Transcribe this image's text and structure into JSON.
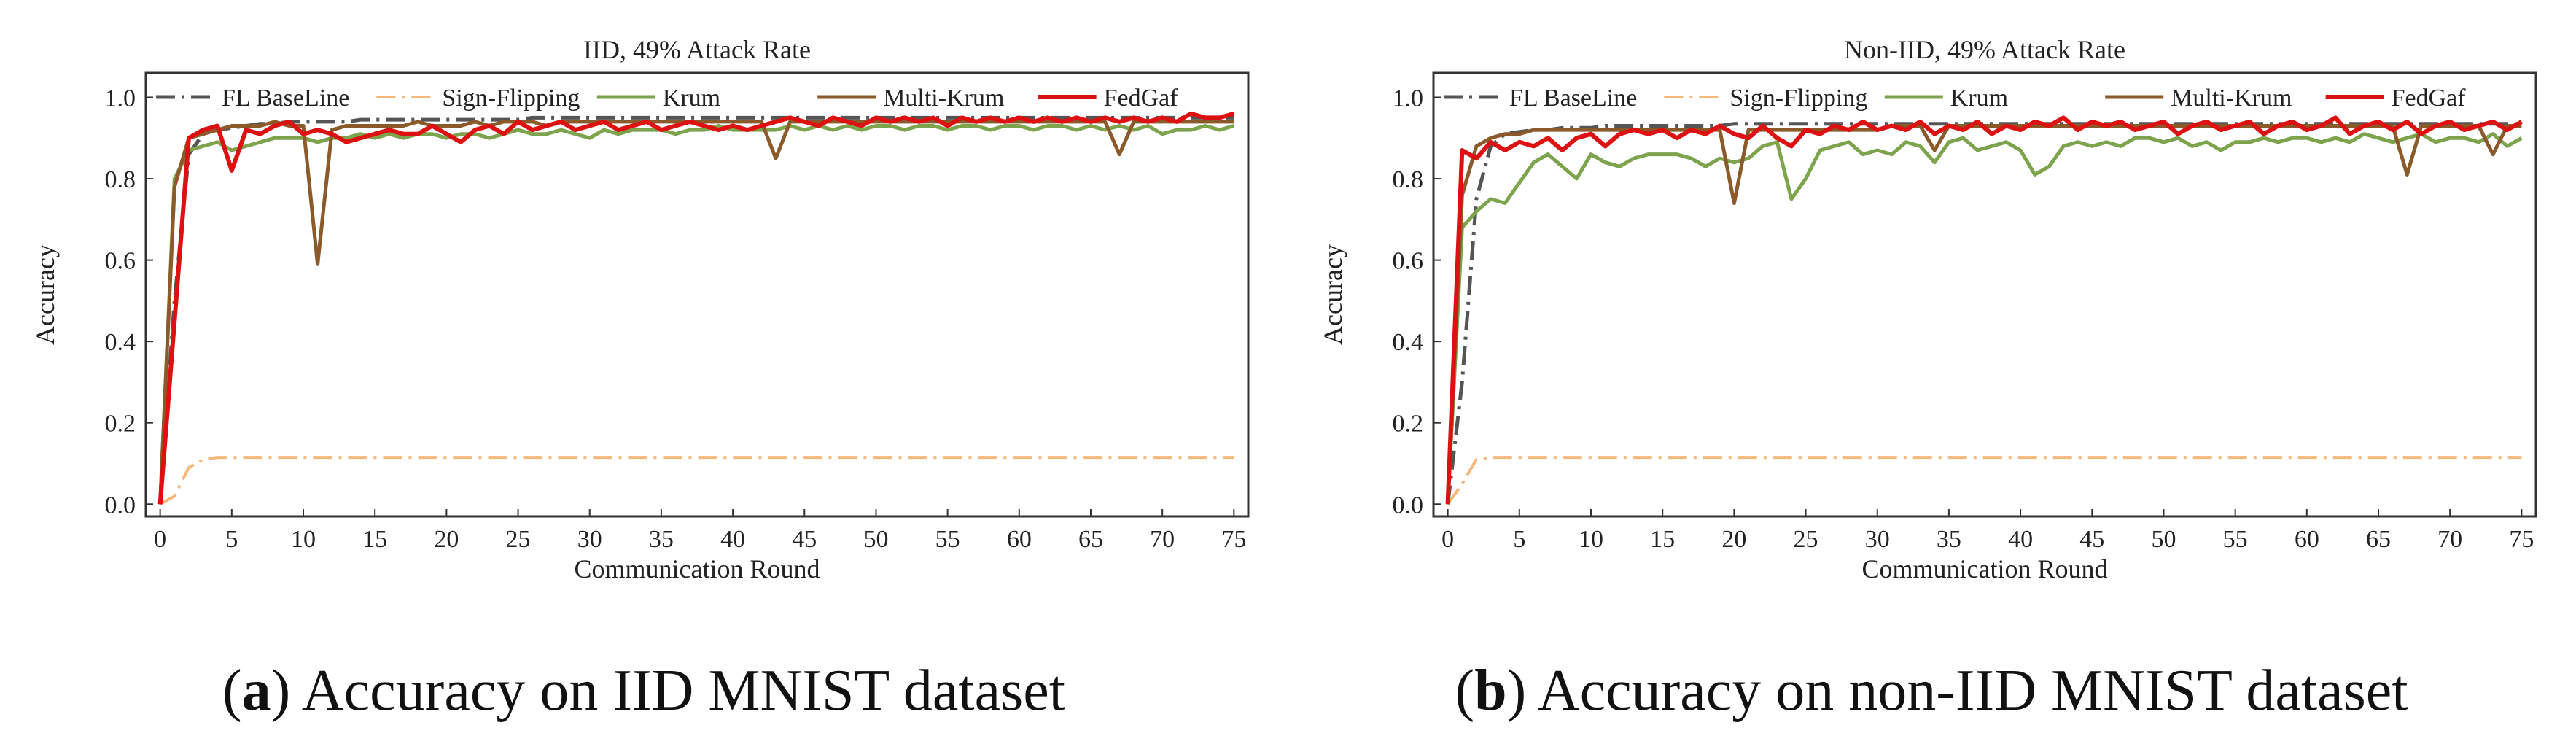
{
  "figure": {
    "panels": [
      {
        "caption_label": "a",
        "caption_text": "Accuracy on IID MNIST dataset"
      },
      {
        "caption_label": "b",
        "caption_text": "Accuracy on non-IID MNIST dataset"
      }
    ]
  },
  "chart_data": [
    {
      "type": "line",
      "title": "IID, 49% Attack Rate",
      "xlabel": "Communication Round",
      "ylabel": "Accuracy",
      "xlim": [
        -1,
        76
      ],
      "ylim": [
        -0.03,
        1.06
      ],
      "xticks": [
        0,
        5,
        10,
        15,
        20,
        25,
        30,
        35,
        40,
        45,
        50,
        55,
        60,
        65,
        70,
        75
      ],
      "yticks": [
        0.0,
        0.2,
        0.4,
        0.6,
        0.8,
        1.0
      ],
      "ytick_labels": [
        "0.0",
        "0.2",
        "0.4",
        "0.6",
        "0.8",
        "1.0"
      ],
      "legend_position": "top",
      "x": [
        0,
        1,
        2,
        3,
        4,
        5,
        6,
        7,
        8,
        9,
        10,
        11,
        12,
        13,
        14,
        15,
        16,
        17,
        18,
        19,
        20,
        21,
        22,
        23,
        24,
        25,
        26,
        27,
        28,
        29,
        30,
        31,
        32,
        33,
        34,
        35,
        36,
        37,
        38,
        39,
        40,
        41,
        42,
        43,
        44,
        45,
        46,
        47,
        48,
        49,
        50,
        51,
        52,
        53,
        54,
        55,
        56,
        57,
        58,
        59,
        60,
        61,
        62,
        63,
        64,
        65,
        66,
        67,
        68,
        69,
        70,
        71,
        72,
        73,
        74,
        75
      ],
      "series": [
        {
          "name": "FL BaseLine",
          "color": "#555555",
          "style": "dashdot",
          "values": [
            0.0,
            0.5,
            0.86,
            0.91,
            0.92,
            0.925,
            0.93,
            0.935,
            0.935,
            0.94,
            0.94,
            0.94,
            0.94,
            0.94,
            0.945,
            0.945,
            0.945,
            0.945,
            0.945,
            0.945,
            0.945,
            0.945,
            0.945,
            0.945,
            0.945,
            0.945,
            0.95,
            0.95,
            0.95,
            0.95,
            0.95,
            0.95,
            0.95,
            0.95,
            0.95,
            0.95,
            0.95,
            0.95,
            0.95,
            0.95,
            0.95,
            0.95,
            0.95,
            0.95,
            0.95,
            0.95,
            0.95,
            0.95,
            0.95,
            0.95,
            0.95,
            0.95,
            0.95,
            0.95,
            0.95,
            0.95,
            0.95,
            0.95,
            0.95,
            0.95,
            0.95,
            0.95,
            0.95,
            0.95,
            0.95,
            0.95,
            0.95,
            0.95,
            0.95,
            0.95,
            0.95,
            0.95,
            0.95,
            0.95,
            0.95,
            0.95
          ]
        },
        {
          "name": "Sign-Flipping",
          "color": "#f5b87a",
          "style": "dashdot",
          "values": [
            0.0,
            0.02,
            0.09,
            0.11,
            0.115,
            0.115,
            0.115,
            0.115,
            0.115,
            0.115,
            0.115,
            0.115,
            0.115,
            0.115,
            0.115,
            0.115,
            0.115,
            0.115,
            0.115,
            0.115,
            0.115,
            0.115,
            0.115,
            0.115,
            0.115,
            0.115,
            0.115,
            0.115,
            0.115,
            0.115,
            0.115,
            0.115,
            0.115,
            0.115,
            0.115,
            0.115,
            0.115,
            0.115,
            0.115,
            0.115,
            0.115,
            0.115,
            0.115,
            0.115,
            0.115,
            0.115,
            0.115,
            0.115,
            0.115,
            0.115,
            0.115,
            0.115,
            0.115,
            0.115,
            0.115,
            0.115,
            0.115,
            0.115,
            0.115,
            0.115,
            0.115,
            0.115,
            0.115,
            0.115,
            0.115,
            0.115,
            0.115,
            0.115,
            0.115,
            0.115,
            0.115,
            0.115,
            0.115,
            0.115,
            0.115,
            0.115
          ]
        },
        {
          "name": "Krum",
          "color": "#7ea34d",
          "style": "solid",
          "values": [
            0.0,
            0.8,
            0.87,
            0.88,
            0.89,
            0.87,
            0.88,
            0.89,
            0.9,
            0.9,
            0.9,
            0.89,
            0.9,
            0.9,
            0.91,
            0.9,
            0.91,
            0.9,
            0.91,
            0.91,
            0.9,
            0.91,
            0.91,
            0.9,
            0.91,
            0.92,
            0.91,
            0.91,
            0.92,
            0.91,
            0.9,
            0.92,
            0.91,
            0.92,
            0.92,
            0.92,
            0.91,
            0.92,
            0.92,
            0.93,
            0.92,
            0.92,
            0.92,
            0.92,
            0.93,
            0.92,
            0.93,
            0.92,
            0.93,
            0.92,
            0.93,
            0.93,
            0.92,
            0.93,
            0.93,
            0.92,
            0.93,
            0.93,
            0.92,
            0.93,
            0.93,
            0.92,
            0.93,
            0.93,
            0.92,
            0.93,
            0.92,
            0.93,
            0.92,
            0.93,
            0.91,
            0.92,
            0.92,
            0.93,
            0.92,
            0.93
          ]
        },
        {
          "name": "Multi-Krum",
          "color": "#8b5a2b",
          "style": "solid",
          "values": [
            0.0,
            0.78,
            0.9,
            0.91,
            0.92,
            0.93,
            0.93,
            0.93,
            0.94,
            0.93,
            0.93,
            0.59,
            0.92,
            0.93,
            0.93,
            0.93,
            0.93,
            0.93,
            0.94,
            0.93,
            0.93,
            0.93,
            0.94,
            0.93,
            0.94,
            0.94,
            0.94,
            0.93,
            0.94,
            0.94,
            0.94,
            0.94,
            0.94,
            0.94,
            0.94,
            0.94,
            0.94,
            0.94,
            0.94,
            0.94,
            0.94,
            0.94,
            0.94,
            0.85,
            0.94,
            0.94,
            0.94,
            0.94,
            0.94,
            0.94,
            0.94,
            0.94,
            0.94,
            0.94,
            0.94,
            0.94,
            0.94,
            0.94,
            0.94,
            0.94,
            0.94,
            0.94,
            0.94,
            0.94,
            0.94,
            0.94,
            0.94,
            0.86,
            0.94,
            0.94,
            0.94,
            0.94,
            0.94,
            0.94,
            0.94,
            0.94
          ]
        },
        {
          "name": "FedGaf",
          "color": "#dd1111",
          "style": "solid",
          "values": [
            0.0,
            0.45,
            0.9,
            0.92,
            0.93,
            0.82,
            0.92,
            0.91,
            0.93,
            0.94,
            0.91,
            0.92,
            0.91,
            0.89,
            0.9,
            0.91,
            0.92,
            0.91,
            0.91,
            0.93,
            0.91,
            0.89,
            0.92,
            0.93,
            0.91,
            0.94,
            0.92,
            0.93,
            0.94,
            0.92,
            0.93,
            0.94,
            0.92,
            0.93,
            0.94,
            0.92,
            0.93,
            0.94,
            0.93,
            0.92,
            0.93,
            0.92,
            0.93,
            0.94,
            0.95,
            0.94,
            0.93,
            0.95,
            0.94,
            0.93,
            0.95,
            0.94,
            0.95,
            0.94,
            0.95,
            0.93,
            0.95,
            0.94,
            0.95,
            0.94,
            0.95,
            0.94,
            0.95,
            0.94,
            0.95,
            0.94,
            0.95,
            0.94,
            0.95,
            0.94,
            0.95,
            0.94,
            0.96,
            0.95,
            0.95,
            0.96
          ]
        }
      ]
    },
    {
      "type": "line",
      "title": "Non-IID, 49% Attack Rate",
      "xlabel": "Communication Round",
      "ylabel": "Accuracy",
      "xlim": [
        -1,
        76
      ],
      "ylim": [
        -0.03,
        1.06
      ],
      "xticks": [
        0,
        5,
        10,
        15,
        20,
        25,
        30,
        35,
        40,
        45,
        50,
        55,
        60,
        65,
        70,
        75
      ],
      "yticks": [
        0.0,
        0.2,
        0.4,
        0.6,
        0.8,
        1.0
      ],
      "ytick_labels": [
        "0.0",
        "0.2",
        "0.4",
        "0.6",
        "0.8",
        "1.0"
      ],
      "legend_position": "top",
      "x": [
        0,
        1,
        2,
        3,
        4,
        5,
        6,
        7,
        8,
        9,
        10,
        11,
        12,
        13,
        14,
        15,
        16,
        17,
        18,
        19,
        20,
        21,
        22,
        23,
        24,
        25,
        26,
        27,
        28,
        29,
        30,
        31,
        32,
        33,
        34,
        35,
        36,
        37,
        38,
        39,
        40,
        41,
        42,
        43,
        44,
        45,
        46,
        47,
        48,
        49,
        50,
        51,
        52,
        53,
        54,
        55,
        56,
        57,
        58,
        59,
        60,
        61,
        62,
        63,
        64,
        65,
        66,
        67,
        68,
        69,
        70,
        71,
        72,
        73,
        74,
        75
      ],
      "series": [
        {
          "name": "FL BaseLine",
          "color": "#555555",
          "style": "dashdot",
          "values": [
            0.0,
            0.3,
            0.75,
            0.88,
            0.91,
            0.915,
            0.92,
            0.92,
            0.925,
            0.925,
            0.925,
            0.93,
            0.93,
            0.93,
            0.93,
            0.93,
            0.93,
            0.93,
            0.93,
            0.93,
            0.935,
            0.935,
            0.935,
            0.935,
            0.935,
            0.935,
            0.935,
            0.935,
            0.935,
            0.935,
            0.935,
            0.935,
            0.935,
            0.935,
            0.935,
            0.935,
            0.935,
            0.935,
            0.935,
            0.935,
            0.935,
            0.935,
            0.935,
            0.935,
            0.935,
            0.935,
            0.935,
            0.935,
            0.935,
            0.935,
            0.935,
            0.935,
            0.935,
            0.935,
            0.935,
            0.935,
            0.935,
            0.935,
            0.935,
            0.935,
            0.935,
            0.935,
            0.935,
            0.935,
            0.935,
            0.935,
            0.935,
            0.935,
            0.935,
            0.935,
            0.935,
            0.935,
            0.935,
            0.935,
            0.935,
            0.935
          ]
        },
        {
          "name": "Sign-Flipping",
          "color": "#f5b87a",
          "style": "dashdot",
          "values": [
            0.0,
            0.05,
            0.11,
            0.115,
            0.115,
            0.115,
            0.115,
            0.115,
            0.115,
            0.115,
            0.115,
            0.115,
            0.115,
            0.115,
            0.115,
            0.115,
            0.115,
            0.115,
            0.115,
            0.115,
            0.115,
            0.115,
            0.115,
            0.115,
            0.115,
            0.115,
            0.115,
            0.115,
            0.115,
            0.115,
            0.115,
            0.115,
            0.115,
            0.115,
            0.115,
            0.115,
            0.115,
            0.115,
            0.115,
            0.115,
            0.115,
            0.115,
            0.115,
            0.115,
            0.115,
            0.115,
            0.115,
            0.115,
            0.115,
            0.115,
            0.115,
            0.115,
            0.115,
            0.115,
            0.115,
            0.115,
            0.115,
            0.115,
            0.115,
            0.115,
            0.115,
            0.115,
            0.115,
            0.115,
            0.115,
            0.115,
            0.115,
            0.115,
            0.115,
            0.115,
            0.115,
            0.115,
            0.115,
            0.115,
            0.115,
            0.115
          ]
        },
        {
          "name": "Krum",
          "color": "#7ea34d",
          "style": "solid",
          "values": [
            0.0,
            0.68,
            0.72,
            0.75,
            0.74,
            0.79,
            0.84,
            0.86,
            0.83,
            0.8,
            0.86,
            0.84,
            0.83,
            0.85,
            0.86,
            0.86,
            0.86,
            0.85,
            0.83,
            0.85,
            0.84,
            0.85,
            0.88,
            0.89,
            0.75,
            0.8,
            0.87,
            0.88,
            0.89,
            0.86,
            0.87,
            0.86,
            0.89,
            0.88,
            0.84,
            0.89,
            0.9,
            0.87,
            0.88,
            0.89,
            0.87,
            0.81,
            0.83,
            0.88,
            0.89,
            0.88,
            0.89,
            0.88,
            0.9,
            0.9,
            0.89,
            0.9,
            0.88,
            0.89,
            0.87,
            0.89,
            0.89,
            0.9,
            0.89,
            0.9,
            0.9,
            0.89,
            0.9,
            0.89,
            0.91,
            0.9,
            0.89,
            0.9,
            0.91,
            0.89,
            0.9,
            0.9,
            0.89,
            0.91,
            0.88,
            0.9
          ]
        },
        {
          "name": "Multi-Krum",
          "color": "#8b5a2b",
          "style": "solid",
          "values": [
            0.0,
            0.76,
            0.88,
            0.9,
            0.91,
            0.91,
            0.92,
            0.92,
            0.92,
            0.92,
            0.92,
            0.92,
            0.92,
            0.92,
            0.92,
            0.92,
            0.92,
            0.92,
            0.92,
            0.92,
            0.74,
            0.92,
            0.92,
            0.92,
            0.92,
            0.92,
            0.92,
            0.92,
            0.92,
            0.92,
            0.92,
            0.93,
            0.93,
            0.93,
            0.87,
            0.93,
            0.93,
            0.93,
            0.93,
            0.93,
            0.93,
            0.93,
            0.93,
            0.93,
            0.93,
            0.93,
            0.93,
            0.93,
            0.93,
            0.93,
            0.93,
            0.93,
            0.93,
            0.93,
            0.93,
            0.93,
            0.93,
            0.93,
            0.93,
            0.93,
            0.93,
            0.93,
            0.93,
            0.93,
            0.93,
            0.93,
            0.93,
            0.81,
            0.93,
            0.93,
            0.93,
            0.93,
            0.93,
            0.86,
            0.93,
            0.93
          ]
        },
        {
          "name": "FedGaf",
          "color": "#dd1111",
          "style": "solid",
          "values": [
            0.0,
            0.87,
            0.85,
            0.89,
            0.87,
            0.89,
            0.88,
            0.9,
            0.87,
            0.9,
            0.91,
            0.88,
            0.91,
            0.92,
            0.91,
            0.92,
            0.9,
            0.92,
            0.91,
            0.93,
            0.91,
            0.9,
            0.93,
            0.9,
            0.88,
            0.92,
            0.91,
            0.93,
            0.92,
            0.94,
            0.92,
            0.93,
            0.92,
            0.94,
            0.91,
            0.93,
            0.92,
            0.94,
            0.91,
            0.93,
            0.92,
            0.94,
            0.93,
            0.95,
            0.92,
            0.94,
            0.93,
            0.94,
            0.92,
            0.93,
            0.94,
            0.91,
            0.93,
            0.94,
            0.92,
            0.93,
            0.94,
            0.91,
            0.93,
            0.94,
            0.92,
            0.93,
            0.95,
            0.91,
            0.93,
            0.94,
            0.92,
            0.94,
            0.91,
            0.93,
            0.94,
            0.92,
            0.93,
            0.94,
            0.92,
            0.94
          ]
        }
      ]
    }
  ]
}
